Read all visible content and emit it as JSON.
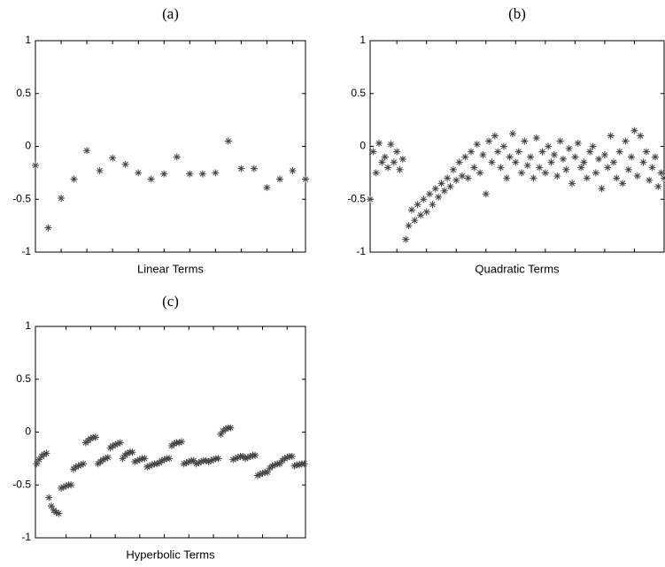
{
  "chart_data": [
    {
      "type": "scatter",
      "title": "(a)",
      "xlabel": "Linear Terms",
      "color": "#444444",
      "x": [
        1,
        2,
        3,
        4,
        5,
        6,
        7,
        8,
        9,
        10,
        11,
        12,
        13,
        14,
        15,
        16,
        17,
        18,
        19,
        20,
        21,
        22
      ],
      "values": [
        -0.18,
        -0.77,
        -0.49,
        -0.31,
        -0.04,
        -0.23,
        -0.11,
        -0.17,
        -0.25,
        -0.31,
        -0.26,
        -0.1,
        -0.26,
        -0.26,
        -0.25,
        0.05,
        -0.21,
        -0.21,
        -0.39,
        -0.31,
        -0.23,
        -0.31
      ],
      "xlim": [
        1,
        22
      ],
      "xticks": [
        3,
        5,
        7,
        9,
        11,
        13,
        15,
        17,
        19,
        21
      ],
      "ylim": [
        -1,
        1
      ],
      "yticks": [
        -1,
        -0.5,
        0,
        0.5,
        1
      ]
    },
    {
      "type": "scatter",
      "title": "(b)",
      "xlabel": "Quadratic Terms",
      "color": "#444444",
      "x": [
        1,
        2,
        3,
        4,
        5,
        6,
        7,
        8,
        9,
        10,
        11,
        12,
        13,
        14,
        15,
        16,
        17,
        18,
        19,
        20,
        21,
        22,
        23,
        24,
        25,
        26,
        27,
        28,
        29,
        30,
        31,
        32,
        33,
        34,
        35,
        36,
        37,
        38,
        39,
        40,
        41,
        42,
        43,
        44,
        45,
        46,
        47,
        48,
        49,
        50,
        51,
        52,
        53,
        54,
        55,
        56,
        57,
        58,
        59,
        60,
        61,
        62,
        63,
        64,
        65,
        66,
        67,
        68,
        69,
        70,
        71,
        72,
        73,
        74,
        75,
        76,
        77,
        78,
        79,
        80,
        81,
        82,
        83,
        84,
        85,
        86,
        87,
        88,
        89,
        90,
        91,
        92,
        93,
        94,
        95,
        96,
        97,
        98,
        99,
        100
      ],
      "values": [
        -0.5,
        -0.05,
        -0.25,
        0.03,
        -0.15,
        -0.1,
        -0.2,
        0.02,
        -0.15,
        -0.05,
        -0.22,
        -0.12,
        -0.88,
        -0.75,
        -0.6,
        -0.7,
        -0.55,
        -0.65,
        -0.5,
        -0.62,
        -0.45,
        -0.55,
        -0.4,
        -0.48,
        -0.35,
        -0.42,
        -0.3,
        -0.38,
        -0.22,
        -0.32,
        -0.15,
        -0.28,
        -0.1,
        -0.3,
        -0.05,
        -0.2,
        0.02,
        -0.25,
        -0.08,
        -0.45,
        0.05,
        -0.15,
        0.1,
        -0.05,
        -0.2,
        0.0,
        -0.3,
        -0.1,
        0.12,
        -0.15,
        -0.05,
        -0.25,
        0.05,
        -0.18,
        -0.1,
        -0.3,
        0.08,
        -0.2,
        -0.05,
        -0.25,
        0.0,
        -0.15,
        -0.08,
        -0.28,
        0.05,
        -0.12,
        -0.22,
        -0.02,
        -0.35,
        -0.1,
        0.03,
        -0.2,
        -0.15,
        -0.3,
        -0.05,
        0.0,
        -0.25,
        -0.12,
        -0.4,
        -0.08,
        -0.2,
        0.1,
        -0.15,
        -0.3,
        -0.05,
        -0.35,
        0.05,
        -0.22,
        -0.1,
        0.15,
        -0.28,
        0.1,
        -0.15,
        -0.05,
        -0.32,
        -0.2,
        -0.1,
        -0.38,
        -0.25,
        -0.3
      ],
      "xlim": [
        1,
        100
      ],
      "xticks": [
        10,
        20,
        30,
        40,
        50,
        60,
        70,
        80,
        90
      ],
      "ylim": [
        -1,
        1
      ],
      "yticks": [
        -1,
        -0.5,
        0,
        0.5,
        1
      ]
    },
    {
      "type": "scatter",
      "title": "(c)",
      "xlabel": "Hyperbolic Terms",
      "color": "#444444",
      "x": [
        0.6,
        0.8,
        1,
        1.2,
        1.4,
        1.6,
        1.8,
        2,
        2.2,
        2.4,
        2.6,
        2.8,
        3,
        3.2,
        3.4,
        3.6,
        3.8,
        4,
        4.2,
        4.4,
        4.6,
        4.8,
        5,
        5.2,
        5.4,
        5.6,
        5.8,
        6,
        6.2,
        6.4,
        6.6,
        6.8,
        7,
        7.2,
        7.4,
        7.6,
        7.8,
        8,
        8.2,
        8.4,
        8.6,
        8.8,
        9,
        9.2,
        9.4,
        9.6,
        9.8,
        10,
        10.2,
        10.4,
        10.6,
        10.8,
        11,
        11.2,
        11.4,
        11.6,
        11.8,
        12,
        12.2,
        12.4,
        12.6,
        12.8,
        13,
        13.2,
        13.4,
        13.6,
        13.8,
        14,
        14.2,
        14.4,
        14.6,
        14.8,
        15,
        15.2,
        15.4,
        15.6,
        15.8,
        16,
        16.2,
        16.4,
        16.6,
        16.8,
        17,
        17.2,
        17.4,
        17.6,
        17.8,
        18,
        18.2,
        18.4,
        18.6,
        18.8,
        19,
        19.2,
        19.4,
        19.6,
        19.8,
        20,
        20.2,
        20.4,
        20.6,
        20.8,
        21,
        21.2,
        21.4,
        21.6,
        21.8,
        22,
        22.2,
        22.4
      ],
      "values": [
        -0.3,
        -0.26,
        -0.23,
        -0.21,
        -0.2,
        -0.62,
        -0.7,
        -0.74,
        -0.76,
        -0.77,
        -0.53,
        -0.52,
        -0.51,
        -0.5,
        -0.5,
        -0.35,
        -0.33,
        -0.32,
        -0.31,
        -0.3,
        -0.1,
        -0.08,
        -0.06,
        -0.05,
        -0.05,
        -0.3,
        -0.28,
        -0.26,
        -0.25,
        -0.24,
        -0.15,
        -0.13,
        -0.12,
        -0.11,
        -0.1,
        -0.25,
        -0.22,
        -0.2,
        -0.19,
        -0.19,
        -0.28,
        -0.27,
        -0.26,
        -0.25,
        -0.25,
        -0.33,
        -0.32,
        -0.31,
        -0.3,
        -0.3,
        -0.29,
        -0.27,
        -0.26,
        -0.25,
        -0.25,
        -0.13,
        -0.11,
        -0.1,
        -0.1,
        -0.09,
        -0.3,
        -0.29,
        -0.28,
        -0.27,
        -0.27,
        -0.3,
        -0.29,
        -0.28,
        -0.27,
        -0.27,
        -0.28,
        -0.27,
        -0.26,
        -0.25,
        -0.25,
        -0.02,
        0.01,
        0.03,
        0.04,
        0.04,
        -0.26,
        -0.25,
        -0.24,
        -0.23,
        -0.23,
        -0.25,
        -0.24,
        -0.23,
        -0.22,
        -0.22,
        -0.41,
        -0.4,
        -0.39,
        -0.38,
        -0.38,
        -0.34,
        -0.32,
        -0.31,
        -0.3,
        -0.3,
        -0.27,
        -0.25,
        -0.24,
        -0.23,
        -0.23,
        -0.32,
        -0.31,
        -0.31,
        -0.3,
        -0.3
      ],
      "xlim": [
        0.5,
        22.5
      ],
      "xticks": [
        3,
        5,
        7,
        9,
        11,
        13,
        15,
        17,
        19,
        21
      ],
      "ylim": [
        -1,
        1
      ],
      "yticks": [
        -1,
        -0.5,
        0,
        0.5,
        1
      ]
    }
  ]
}
